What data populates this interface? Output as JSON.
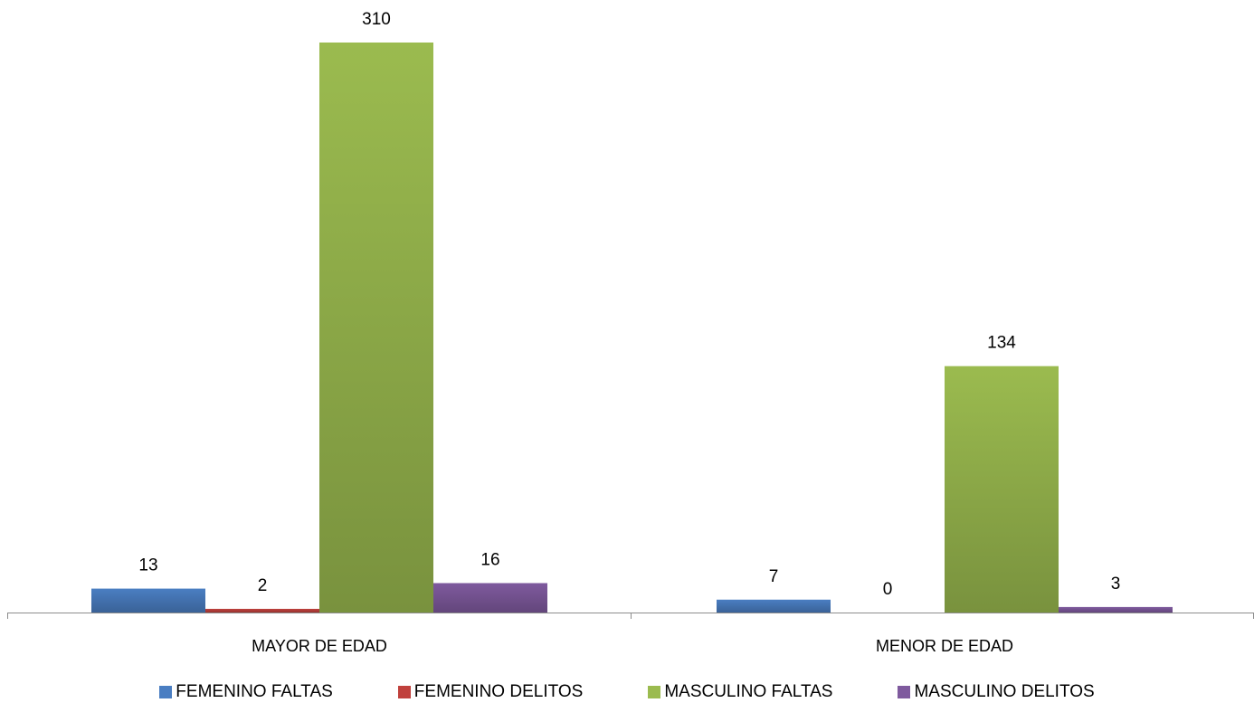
{
  "chart_data": {
    "type": "bar",
    "title": "",
    "xlabel": "",
    "ylabel": "",
    "categories": [
      "MAYOR DE EDAD",
      "MENOR DE EDAD"
    ],
    "series": [
      {
        "name": "FEMENINO FALTAS",
        "values": [
          13,
          7
        ],
        "color": "#4a7ec2"
      },
      {
        "name": "FEMENINO DELITOS",
        "values": [
          2,
          0
        ],
        "color": "#c0403c"
      },
      {
        "name": "MASCULINO FALTAS",
        "values": [
          310,
          134
        ],
        "color": "#9bbb4f"
      },
      {
        "name": "MASCULINO DELITOS",
        "values": [
          16,
          3
        ],
        "color": "#7f5a9e"
      }
    ],
    "ylim": [
      0,
      310
    ],
    "grid": false,
    "legend_position": "bottom",
    "data_labels": true
  }
}
